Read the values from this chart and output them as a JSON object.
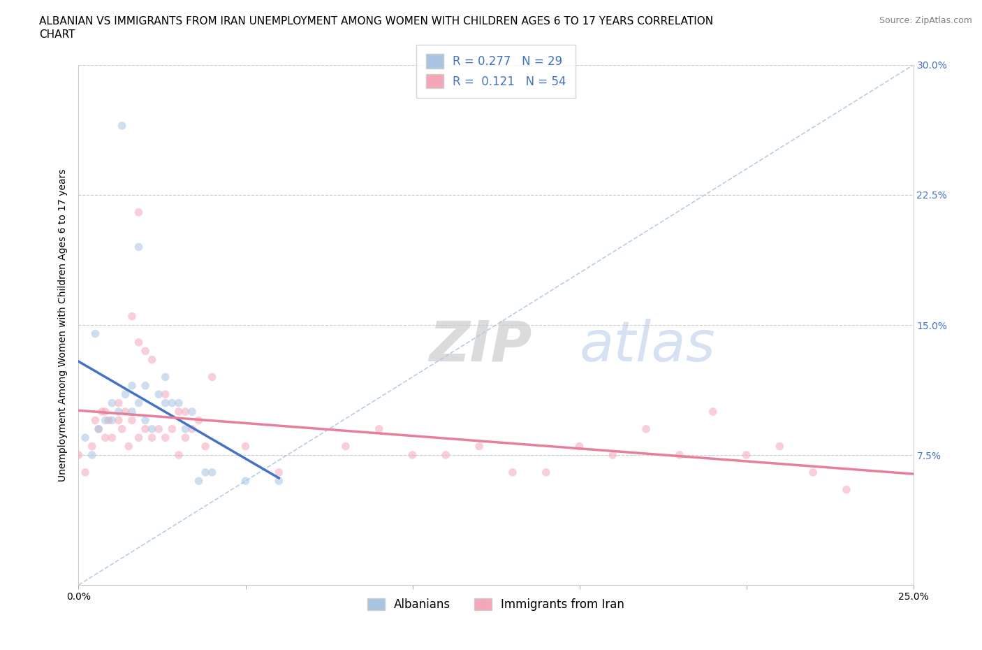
{
  "title_line1": "ALBANIAN VS IMMIGRANTS FROM IRAN UNEMPLOYMENT AMONG WOMEN WITH CHILDREN AGES 6 TO 17 YEARS CORRELATION",
  "title_line2": "CHART",
  "source": "Source: ZipAtlas.com",
  "ylabel": "Unemployment Among Women with Children Ages 6 to 17 years",
  "xlim": [
    0.0,
    0.25
  ],
  "ylim": [
    0.0,
    0.3
  ],
  "xticks": [
    0.0,
    0.05,
    0.1,
    0.15,
    0.2,
    0.25
  ],
  "xticklabels": [
    "0.0%",
    "",
    "",
    "",
    "",
    "25.0%"
  ],
  "ytick_positions": [
    0.0,
    0.075,
    0.15,
    0.225,
    0.3
  ],
  "yticklabels_right": [
    "",
    "7.5%",
    "15.0%",
    "22.5%",
    "30.0%"
  ],
  "albanians_x": [
    0.013,
    0.018,
    0.005,
    0.002,
    0.004,
    0.006,
    0.008,
    0.01,
    0.01,
    0.012,
    0.014,
    0.016,
    0.016,
    0.018,
    0.02,
    0.02,
    0.022,
    0.024,
    0.026,
    0.026,
    0.028,
    0.03,
    0.032,
    0.034,
    0.036,
    0.038,
    0.04,
    0.05,
    0.06
  ],
  "albanians_y": [
    0.265,
    0.195,
    0.145,
    0.085,
    0.075,
    0.09,
    0.095,
    0.095,
    0.105,
    0.1,
    0.11,
    0.1,
    0.115,
    0.105,
    0.095,
    0.115,
    0.09,
    0.11,
    0.105,
    0.12,
    0.105,
    0.105,
    0.09,
    0.1,
    0.06,
    0.065,
    0.065,
    0.06,
    0.06
  ],
  "iran_x": [
    0.0,
    0.002,
    0.004,
    0.005,
    0.006,
    0.007,
    0.008,
    0.008,
    0.009,
    0.01,
    0.012,
    0.012,
    0.013,
    0.014,
    0.015,
    0.016,
    0.016,
    0.018,
    0.018,
    0.02,
    0.02,
    0.022,
    0.022,
    0.024,
    0.026,
    0.026,
    0.028,
    0.03,
    0.03,
    0.032,
    0.032,
    0.034,
    0.036,
    0.038,
    0.04,
    0.05,
    0.06,
    0.08,
    0.09,
    0.1,
    0.11,
    0.12,
    0.13,
    0.14,
    0.15,
    0.16,
    0.17,
    0.18,
    0.19,
    0.2,
    0.21,
    0.22,
    0.23,
    0.018
  ],
  "iran_y": [
    0.075,
    0.065,
    0.08,
    0.095,
    0.09,
    0.1,
    0.085,
    0.1,
    0.095,
    0.085,
    0.095,
    0.105,
    0.09,
    0.1,
    0.08,
    0.095,
    0.155,
    0.085,
    0.14,
    0.09,
    0.135,
    0.085,
    0.13,
    0.09,
    0.085,
    0.11,
    0.09,
    0.075,
    0.1,
    0.085,
    0.1,
    0.09,
    0.095,
    0.08,
    0.12,
    0.08,
    0.065,
    0.08,
    0.09,
    0.075,
    0.075,
    0.08,
    0.065,
    0.065,
    0.08,
    0.075,
    0.09,
    0.075,
    0.1,
    0.075,
    0.08,
    0.065,
    0.055,
    0.215
  ],
  "albanian_color": "#a8c4e0",
  "iran_color": "#f4a7b9",
  "albanian_line_color": "#4472c4",
  "iran_line_color": "#e87f9a",
  "trendline_dash_color": "#b0c8e0",
  "R_albanian": 0.277,
  "N_albanian": 29,
  "R_iran": 0.121,
  "N_iran": 54,
  "watermark_zip": "ZIP",
  "watermark_atlas": "atlas",
  "legend_albanians": "Albanians",
  "legend_iran": "Immigrants from Iran",
  "title_fontsize": 11,
  "axis_label_fontsize": 10,
  "tick_fontsize": 10,
  "legend_fontsize": 12,
  "marker_size": 70,
  "marker_alpha": 0.55
}
